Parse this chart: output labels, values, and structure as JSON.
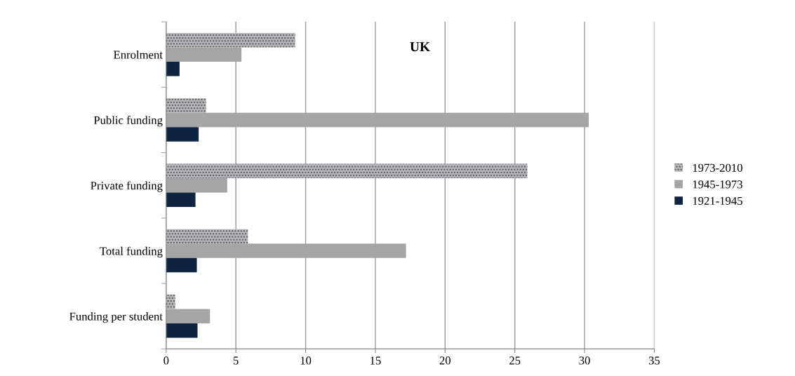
{
  "chart_data": {
    "type": "bar",
    "orientation": "horizontal",
    "title": "UK",
    "categories": [
      "Enrolment",
      "Public funding",
      "Private funding",
      "Total funding",
      "Funding per student"
    ],
    "series": [
      {
        "name": "1973-2010",
        "color": "#b4b4b8",
        "values": [
          9.25,
          2.86,
          25.9,
          5.86,
          0.65
        ]
      },
      {
        "name": "1945-1973",
        "color": "#a5a5a5",
        "values": [
          5.4,
          30.3,
          4.38,
          17.2,
          3.14
        ]
      },
      {
        "name": "1921-1945",
        "color": "#10243f",
        "values": [
          0.96,
          2.33,
          2.1,
          2.2,
          2.25
        ]
      }
    ],
    "xlim": [
      0,
      35
    ],
    "xticks": [
      0,
      5,
      10,
      15,
      20,
      25,
      30,
      35
    ],
    "grid": "x",
    "legend": "right"
  }
}
